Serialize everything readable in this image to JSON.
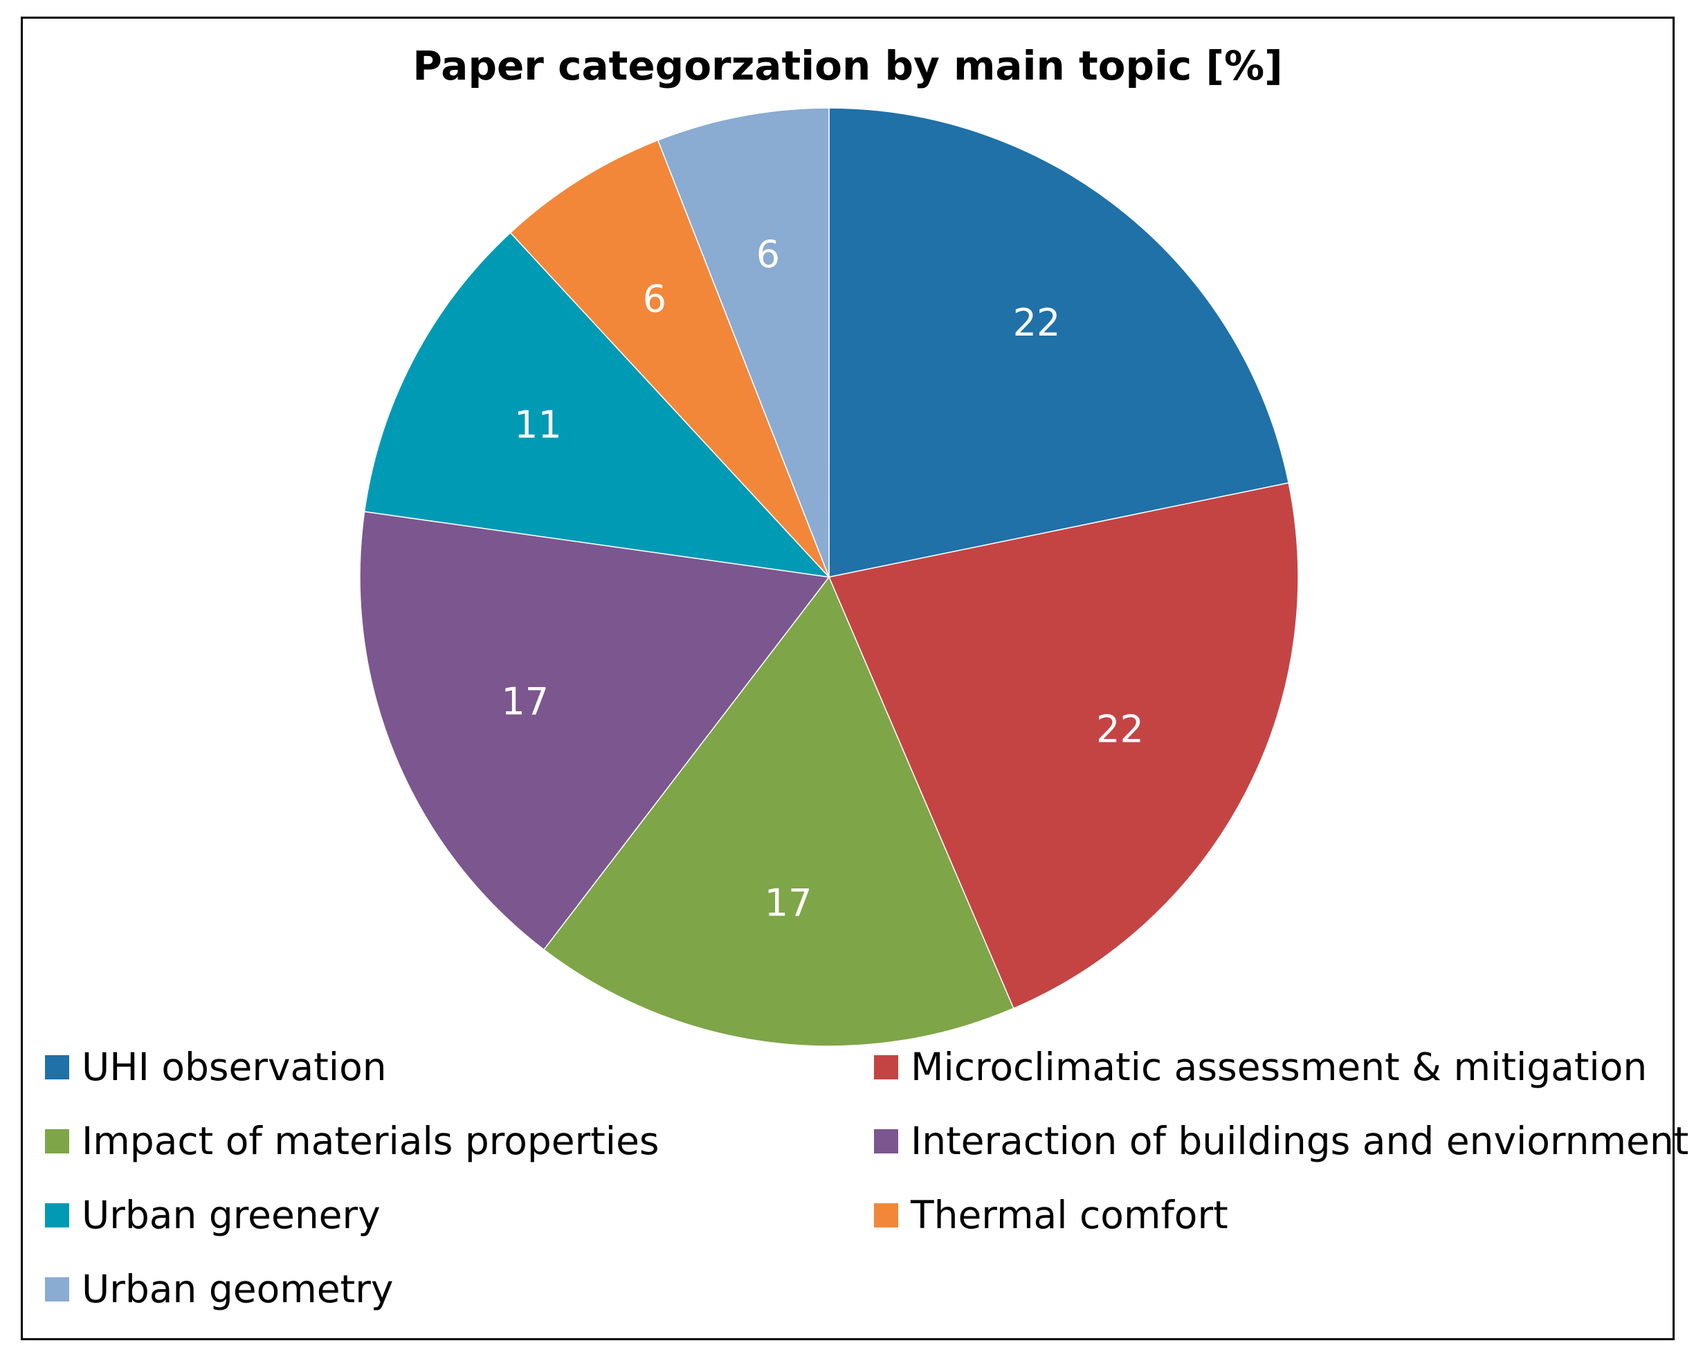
{
  "chart_data": {
    "type": "pie",
    "title": "Paper categorzation by main topic [%]",
    "categories": [
      "UHI observation",
      "Microclimatic assessment & mitigation",
      "Impact of materials properties",
      "Interaction of buildings and enviornment",
      "Urban greenery",
      "Thermal comfort",
      "Urban geometry"
    ],
    "values": [
      22,
      22,
      17,
      17,
      11,
      6,
      6
    ],
    "colors": [
      "#1F71A8",
      "#C44444",
      "#7EA547",
      "#7C568F",
      "#009AB4",
      "#F2873A",
      "#8AABD2"
    ],
    "data_labels": [
      "22",
      "22",
      "17",
      "17",
      "11",
      "6",
      "6"
    ],
    "data_label_color": "#ffffff",
    "legend_placement": "bottom",
    "start_angle": "12 o'clock",
    "direction": "clockwise"
  }
}
